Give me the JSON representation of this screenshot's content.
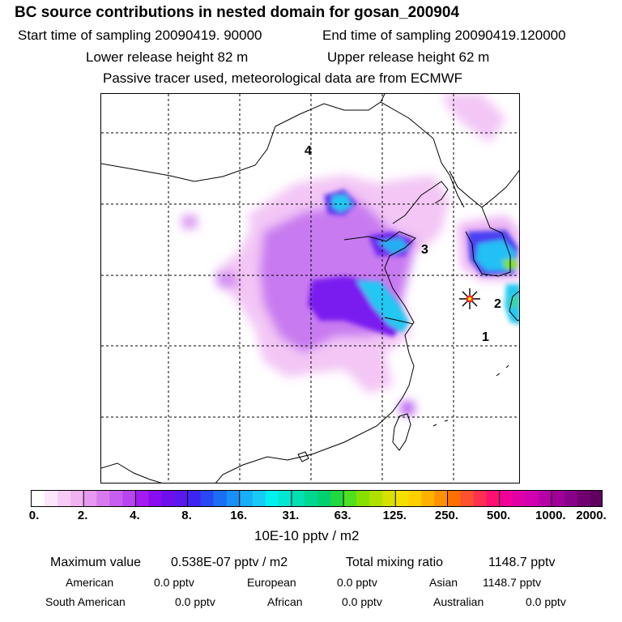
{
  "header": {
    "title": "BC  source contributions in nested domain for gosan_200904",
    "start_label": "Start time of sampling 20090419. 90000",
    "end_label": "End time of sampling 20090419.120000",
    "lower_label": "Lower release height   82 m",
    "upper_label": "Upper release height   62 m",
    "note": "Passive tracer used, meteorological data are from ECMWF"
  },
  "map": {
    "region_labels": [
      "4",
      "3",
      "2",
      "1"
    ],
    "receptor_marker": "receptor-star"
  },
  "colorbar": {
    "ticks": [
      "0.",
      "2.",
      "4.",
      "8.",
      "16.",
      "31.",
      "63.",
      "125.",
      "250.",
      "500.",
      "1000.",
      "2000."
    ],
    "units": "10E-10 pptv / m2",
    "colors": [
      "#ffffff",
      "#fbe6fb",
      "#f6ccf6",
      "#f0b2f0",
      "#e699ee",
      "#d97aee",
      "#c85ef0",
      "#b845f0",
      "#a21cf2",
      "#8a0cf0",
      "#6e10ee",
      "#5a18ee",
      "#3e24f0",
      "#2a48f2",
      "#1a6ef4",
      "#1890f6",
      "#18aef8",
      "#18caf8",
      "#00f0f0",
      "#00e8d0",
      "#00e0b0",
      "#00d890",
      "#00d070",
      "#20d840",
      "#50e020",
      "#88e000",
      "#b0e000",
      "#d8e000",
      "#f4e000",
      "#ffd000",
      "#ffb000",
      "#ff9000",
      "#ff7000",
      "#ff5030",
      "#ff3050",
      "#ff1070",
      "#f00098",
      "#e000a8",
      "#d000b0",
      "#b800a8",
      "#a00098",
      "#880088",
      "#700070",
      "#600060"
    ]
  },
  "stats": {
    "max_label": "Maximum value",
    "max_value": "0.538E-07 pptv / m2",
    "total_label": "Total mixing ratio",
    "total_value": "1148.7 pptv",
    "regions": [
      {
        "name": "American",
        "value": "0.0 pptv"
      },
      {
        "name": "European",
        "value": "0.0 pptv"
      },
      {
        "name": "Asian",
        "value": "1148.7 pptv"
      },
      {
        "name": "South American",
        "value": "0.0 pptv"
      },
      {
        "name": "African",
        "value": "0.0 pptv"
      },
      {
        "name": "Australian",
        "value": "0.0 pptv"
      }
    ]
  }
}
